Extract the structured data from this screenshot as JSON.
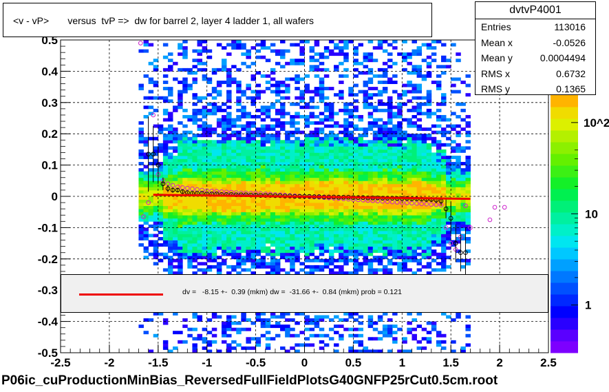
{
  "title": "<v - vP>       versus  tvP =>  dw for barrel 2, layer 4 ladder 1, all wafers",
  "stats": {
    "name": "dvtvP4001",
    "rows": [
      {
        "key": "Entries",
        "value": "113016"
      },
      {
        "key": "Mean x",
        "value": "-0.0526"
      },
      {
        "key": "Mean y",
        "value": "0.0004494"
      },
      {
        "key": "RMS x",
        "value": "0.6732"
      },
      {
        "key": "RMS y",
        "value": "0.1365"
      }
    ]
  },
  "fit_legend": {
    "text": "dv =   -8.15 +-  0.39 (mkm) dw =  -31.66 +-  0.84 (mkm) prob = 0.121",
    "line_color": "#ee0000"
  },
  "footer": "P06ic_cuProductionMinBias_ReversedFullFieldPlotsG40GNFP25rCut0.5cm.root",
  "chart_data": {
    "type": "heatmap",
    "xlim": [
      -2.5,
      2.5
    ],
    "ylim": [
      -0.5,
      0.5
    ],
    "x_ticks": [
      "-2.5",
      "-2",
      "-1.5",
      "-1",
      "-0.5",
      "0",
      "0.5",
      "1",
      "1.5",
      "2",
      "2.5"
    ],
    "y_ticks": [
      "-0.5",
      "-0.4",
      "-0.3",
      "-0.2",
      "-0.1",
      "0",
      "0.1",
      "0.2",
      "0.3",
      "0.4",
      "0.5"
    ],
    "grid": true,
    "color_scale": {
      "log": true,
      "tick_labels": [
        "1",
        "10",
        "10^2"
      ],
      "palette": [
        "#7d00ff",
        "#5a00ff",
        "#2a00ff",
        "#0000ff",
        "#0028ff",
        "#0050ff",
        "#0078ff",
        "#00a0ff",
        "#00c8ff",
        "#00e6f0",
        "#00f0c8",
        "#00f0a0",
        "#00f078",
        "#00f050",
        "#14f028",
        "#3cf014",
        "#64f000",
        "#8cf000",
        "#b4f000",
        "#dcf000",
        "#f0dc00",
        "#ffb400"
      ]
    },
    "fit_line": {
      "x": [
        -1.55,
        1.7
      ],
      "y": [
        0.005,
        -0.008
      ],
      "color": "#ee0000"
    },
    "profile_black": {
      "x": [
        -1.6,
        -1.55,
        -1.5,
        -1.45,
        -1.4,
        -1.35,
        -1.3,
        -1.25,
        -1.2,
        -1.15,
        -1.1,
        -1.05,
        -1.0,
        -0.95,
        -0.9,
        -0.85,
        -0.8,
        -0.75,
        -0.7,
        -0.65,
        -0.6,
        -0.55,
        -0.5,
        -0.45,
        -0.4,
        -0.35,
        -0.3,
        -0.25,
        -0.2,
        -0.15,
        -0.1,
        -0.05,
        0.0,
        0.05,
        0.1,
        0.15,
        0.2,
        0.25,
        0.3,
        0.35,
        0.4,
        0.45,
        0.5,
        0.55,
        0.6,
        0.65,
        0.7,
        0.75,
        0.8,
        0.85,
        0.9,
        0.95,
        1.0,
        1.05,
        1.1,
        1.15,
        1.2,
        1.25,
        1.3,
        1.35,
        1.4,
        1.45,
        1.5,
        1.55,
        1.6,
        1.65
      ],
      "y": [
        0.135,
        0.135,
        0.1,
        0.04,
        0.025,
        0.02,
        0.02,
        0.015,
        0.012,
        0.01,
        0.01,
        0.01,
        0.008,
        0.008,
        0.008,
        0.006,
        0.006,
        0.006,
        0.005,
        0.005,
        0.005,
        0.004,
        0.004,
        0.003,
        0.003,
        0.003,
        0.002,
        0.002,
        0.001,
        0.001,
        0.0,
        0.0,
        0.0,
        0.0,
        -0.001,
        -0.001,
        -0.002,
        -0.002,
        -0.002,
        -0.003,
        -0.003,
        -0.003,
        -0.004,
        -0.004,
        -0.004,
        -0.005,
        -0.005,
        -0.005,
        -0.006,
        -0.006,
        -0.006,
        -0.007,
        -0.007,
        -0.007,
        -0.008,
        -0.008,
        -0.009,
        -0.01,
        -0.01,
        -0.012,
        -0.015,
        -0.04,
        -0.07,
        -0.15,
        -0.18,
        -0.18
      ],
      "err": [
        0.12,
        0.09,
        0.06,
        0.02,
        0.012,
        0.008,
        0.006,
        0.005,
        0.004,
        0.004,
        0.003,
        0.003,
        0.003,
        0.003,
        0.003,
        0.003,
        0.003,
        0.003,
        0.003,
        0.003,
        0.003,
        0.003,
        0.003,
        0.003,
        0.003,
        0.003,
        0.003,
        0.003,
        0.003,
        0.003,
        0.003,
        0.003,
        0.003,
        0.003,
        0.003,
        0.003,
        0.003,
        0.003,
        0.003,
        0.003,
        0.003,
        0.003,
        0.003,
        0.003,
        0.003,
        0.003,
        0.003,
        0.003,
        0.003,
        0.003,
        0.003,
        0.003,
        0.003,
        0.004,
        0.004,
        0.004,
        0.005,
        0.006,
        0.008,
        0.01,
        0.015,
        0.03,
        0.05,
        0.06,
        0.06,
        0.08
      ]
    },
    "profile_magenta": {
      "x": [
        -1.65,
        -1.6,
        -1.55,
        -1.5,
        -1.45,
        -1.4,
        -1.35,
        -1.3,
        -1.25,
        -1.2,
        -1.15,
        -1.1,
        -1.05,
        -1.0,
        -0.95,
        -0.9,
        -0.85,
        -0.8,
        -0.75,
        -0.7,
        -0.65,
        -0.6,
        -0.55,
        -0.5,
        -0.45,
        -0.4,
        -0.35,
        -0.3,
        -0.25,
        -0.2,
        -0.15,
        -0.1,
        -0.05,
        0.0,
        0.05,
        0.1,
        0.15,
        0.2,
        0.25,
        0.3,
        0.35,
        0.4,
        0.45,
        0.5,
        0.55,
        0.6,
        0.65,
        0.7,
        0.75,
        0.8,
        0.85,
        0.9,
        0.95,
        1.0,
        1.05,
        1.1,
        1.15,
        1.2,
        1.25,
        1.3,
        1.35,
        1.4,
        1.45,
        1.5,
        1.55,
        1.6,
        1.65,
        1.7,
        1.9,
        1.95,
        2.05,
        -1.68
      ],
      "y": [
        -0.065,
        -0.02,
        0.26,
        0.07,
        0.05,
        0.04,
        0.035,
        0.03,
        0.028,
        0.026,
        0.024,
        0.022,
        0.02,
        0.018,
        0.017,
        0.016,
        0.015,
        0.014,
        0.013,
        0.012,
        0.011,
        0.011,
        0.01,
        0.01,
        0.009,
        0.008,
        0.007,
        0.006,
        0.005,
        0.004,
        0.003,
        0.002,
        0.001,
        0.0,
        -0.001,
        -0.002,
        -0.003,
        -0.004,
        -0.005,
        -0.006,
        -0.007,
        -0.008,
        -0.009,
        -0.01,
        -0.011,
        -0.012,
        -0.013,
        -0.014,
        -0.015,
        -0.016,
        -0.017,
        -0.018,
        -0.019,
        -0.02,
        -0.021,
        -0.022,
        -0.023,
        -0.024,
        -0.025,
        -0.026,
        -0.027,
        -0.028,
        -0.1,
        -0.15,
        -0.17,
        -0.13,
        -0.03,
        -0.1,
        -0.075,
        -0.035,
        -0.035,
        0.49
      ]
    }
  }
}
